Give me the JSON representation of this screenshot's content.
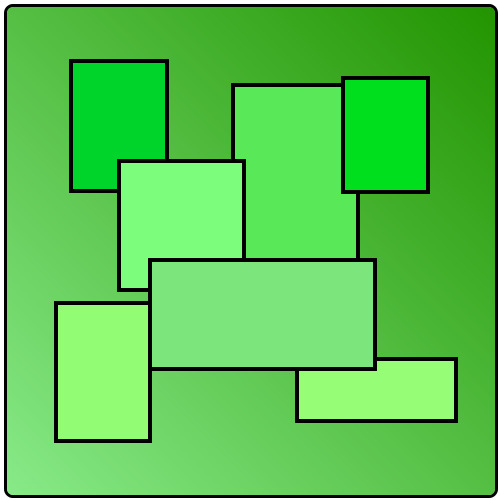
{
  "board": {
    "background_gradient": [
      "#88ea88",
      "#229400"
    ],
    "stroke_color": "#000000"
  },
  "blocks": [
    {
      "id": "block-1",
      "color": "#00d32a"
    },
    {
      "id": "block-2",
      "color": "#58e858"
    },
    {
      "id": "block-3",
      "color": "#7cfd7c"
    },
    {
      "id": "block-4",
      "color": "#00df1e"
    },
    {
      "id": "block-5",
      "color": "#92fd74"
    },
    {
      "id": "block-6",
      "color": "#96fe76"
    },
    {
      "id": "block-7",
      "color": "#7ce57c"
    }
  ]
}
